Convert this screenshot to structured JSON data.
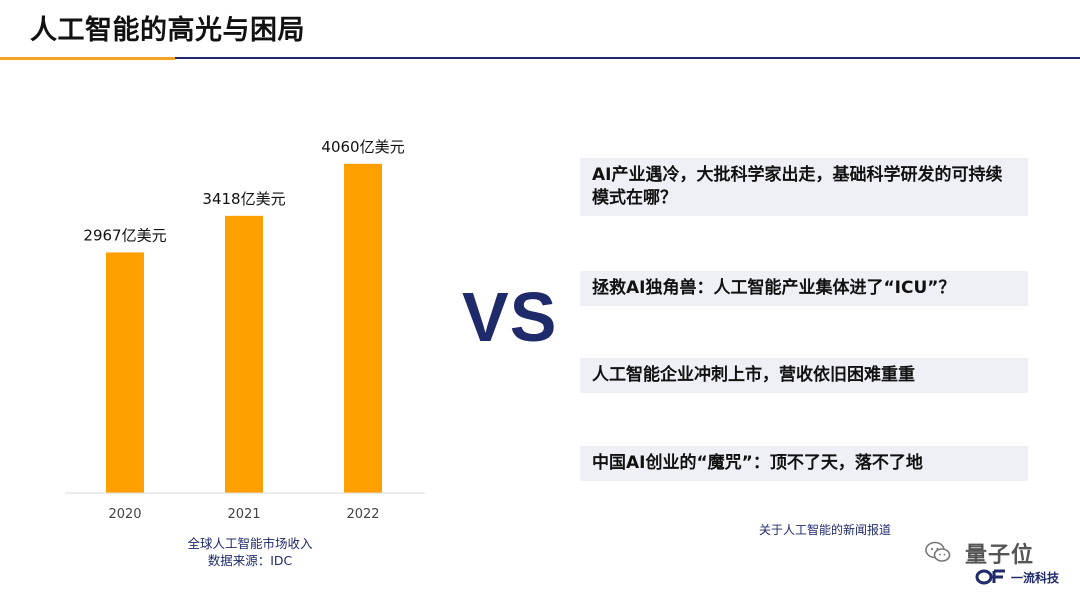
{
  "slide": {
    "title": "人工智能的高光与困局",
    "vs_text": "VS",
    "accent_color": "#f5a623",
    "brand_color": "#1f2a6b"
  },
  "chart_data": {
    "type": "bar",
    "categories": [
      "2020",
      "2021",
      "2022"
    ],
    "values": [
      2967,
      3418,
      4060
    ],
    "data_labels": [
      "2967亿美元",
      "3418亿美元",
      "4060亿美元"
    ],
    "unit": "亿美元",
    "ylim": [
      0,
      4600
    ],
    "bar_color": "#ff9f00",
    "grid": false,
    "caption_line1": "全球人工智能市场收入",
    "caption_line2": "数据来源：IDC"
  },
  "headlines": {
    "items": [
      "AI产业遇冷，大批科学家出走，基础科学研发的可持续模式在哪？",
      "拯救AI独角兽：人工智能产业集体进了“ICU”？",
      "人工智能企业冲刺上市，营收依旧困难重重",
      "中国AI创业的“魔咒”：顶不了天，落不了地"
    ],
    "caption": "关于人工智能的新闻报道"
  },
  "watermark": {
    "icon": "wechat-icon",
    "name": "量子位",
    "logo_text": "一流科技"
  }
}
